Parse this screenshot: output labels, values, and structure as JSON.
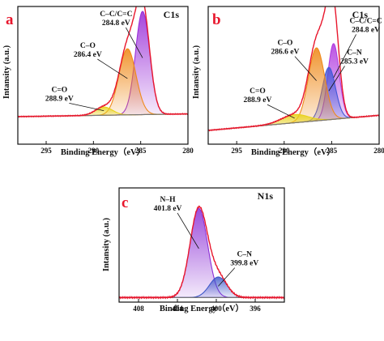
{
  "chart_data": [
    {
      "panel": "a",
      "core_level": "C1s",
      "type": "line",
      "xlabel": "Binding Energy（eV）",
      "ylabel": "Intansity (a.u.)",
      "xlim": [
        298,
        280
      ],
      "ylim": [
        0,
        100
      ],
      "xticks": [
        295,
        290,
        285,
        280
      ],
      "background": [
        20,
        22
      ],
      "peaks": [
        {
          "center": 284.8,
          "height": 75,
          "sigma": 0.75,
          "color": "#9b30d9",
          "label": "C–C/C=C\n284.8 eV",
          "label_at": [
            287.6,
            93
          ]
        },
        {
          "center": 286.4,
          "height": 48,
          "sigma": 0.9,
          "color": "#ef8a1a",
          "label": "C–O\n286.4 eV",
          "label_at": [
            290.6,
            70
          ]
        },
        {
          "center": 288.9,
          "height": 6,
          "sigma": 0.9,
          "color": "#e8d21a",
          "label": "C=O\n288.9 eV",
          "label_at": [
            293.6,
            38
          ]
        }
      ],
      "envelope_color": "#e8172d"
    },
    {
      "panel": "b",
      "core_level": "C1s",
      "type": "line",
      "xlabel": "Binding Energy（eV）",
      "ylabel": "Intansity (a.u.)",
      "xlim": [
        298,
        280
      ],
      "ylim": [
        0,
        100
      ],
      "xticks": [
        295,
        290,
        285,
        280
      ],
      "background": [
        10,
        21
      ],
      "peaks": [
        {
          "center": 284.8,
          "height": 55,
          "sigma": 0.6,
          "color": "#b23ee0",
          "label": "C–C/C=C\n284.8 eV",
          "label_at": [
            281.4,
            88
          ]
        },
        {
          "center": 285.3,
          "height": 38,
          "sigma": 0.7,
          "color": "#4157d8",
          "label": "C–N\n285.3 eV",
          "label_at": [
            282.6,
            65
          ]
        },
        {
          "center": 286.6,
          "height": 53,
          "sigma": 0.85,
          "color": "#ef8a1a",
          "label": "C–O\n286.6 eV",
          "label_at": [
            289.9,
            72
          ]
        },
        {
          "center": 288.9,
          "height": 6,
          "sigma": 1.4,
          "color": "#e8d21a",
          "label": "C=O\n288.9 eV",
          "label_at": [
            292.8,
            37
          ]
        }
      ],
      "envelope_color": "#e8172d"
    },
    {
      "panel": "c",
      "core_level": "N1s",
      "type": "line",
      "xlabel": "Binding Energy（eV）",
      "ylabel": "Intansity (a.u.)",
      "xlim": [
        410,
        393
      ],
      "ylim": [
        0,
        100
      ],
      "xticks": [
        408,
        404,
        400,
        396
      ],
      "background": [
        4,
        4
      ],
      "peaks": [
        {
          "center": 401.8,
          "height": 78,
          "sigma": 0.9,
          "color": "#8c2fd6",
          "label": "N–H\n401.8 eV",
          "label_at": [
            405.0,
            88
          ]
        },
        {
          "center": 399.8,
          "height": 18,
          "sigma": 0.9,
          "color": "#3d57c9",
          "label": "C–N\n399.8 eV",
          "label_at": [
            397.1,
            40
          ]
        }
      ],
      "envelope_color": "#e8172d"
    }
  ]
}
